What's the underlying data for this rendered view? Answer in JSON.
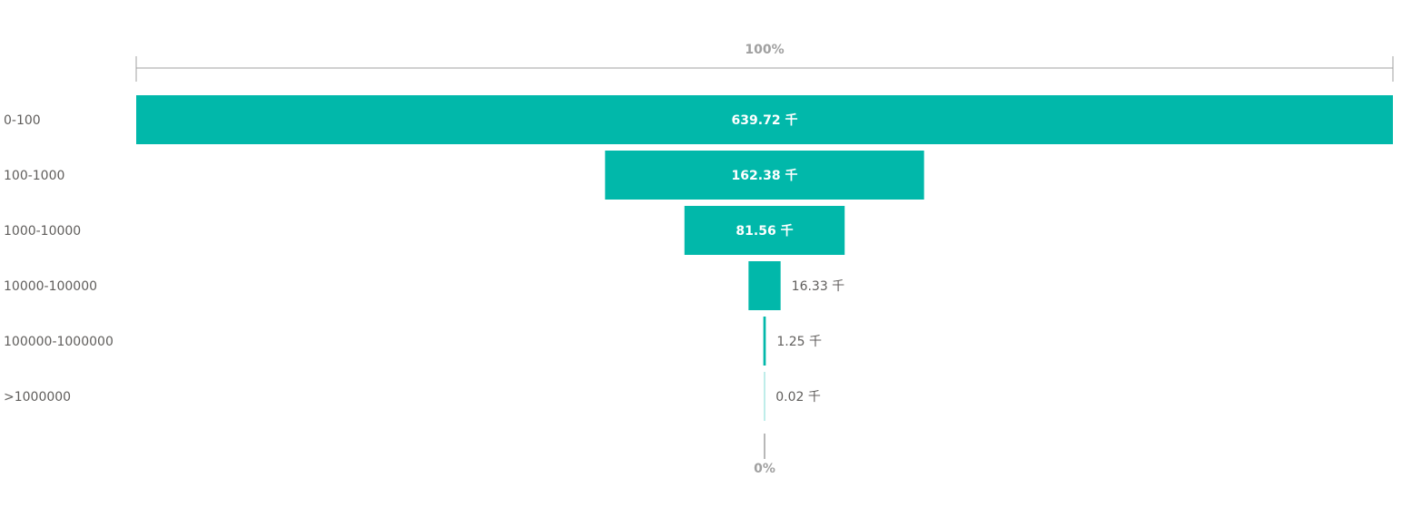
{
  "chart_data": {
    "type": "funnel",
    "categories": [
      "0-100",
      "100-1000",
      "1000-10000",
      "10000-100000",
      "100000-1000000",
      ">1000000"
    ],
    "values": [
      639.72,
      162.38,
      81.56,
      16.33,
      1.25,
      0.02
    ],
    "value_labels": [
      "639.72 千",
      "162.38 千",
      "81.56 千",
      "16.33 千",
      "1.25 千",
      "0.02 千"
    ],
    "unit": "千",
    "top_percent_label": "100%",
    "bottom_percent_label": "0%",
    "title": "",
    "xlabel": "",
    "ylabel": "",
    "legend": "none",
    "grid": false
  },
  "colors": {
    "bar": "#01b8aa",
    "label_inside": "#ffffff",
    "label_outside": "#605e5c",
    "category_text": "#605e5c",
    "scale_line": "#a0a0a0"
  }
}
